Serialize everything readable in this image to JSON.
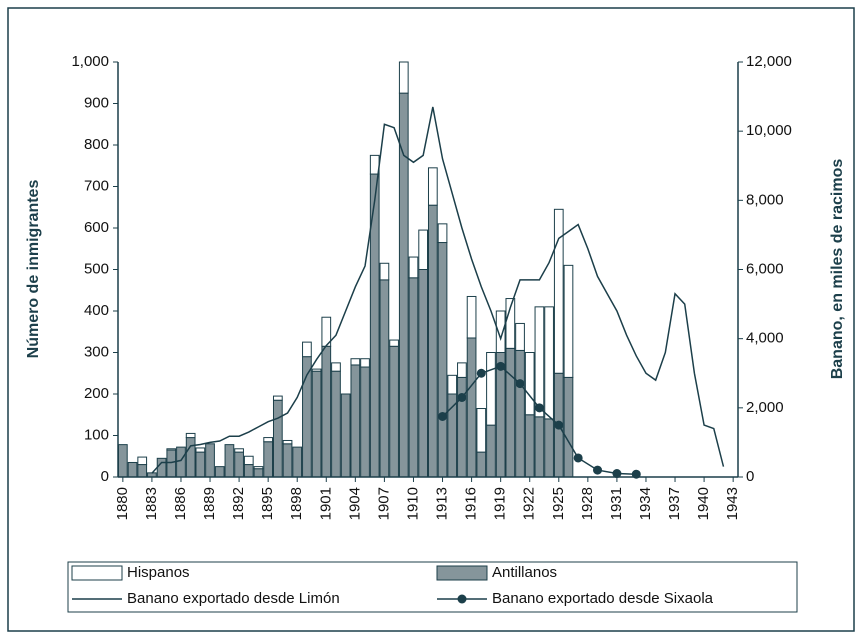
{
  "chart_data": {
    "type": "bar_line",
    "y_label": "Número de inmigrantes",
    "y2_label": "Banano, en miles de racimos",
    "xlim": [
      1879.5,
      1943.5
    ],
    "xticks": [
      1880,
      1883,
      1886,
      1889,
      1892,
      1895,
      1898,
      1901,
      1904,
      1907,
      1910,
      1913,
      1916,
      1919,
      1922,
      1925,
      1928,
      1931,
      1934,
      1937,
      1940,
      1943
    ],
    "ylim": [
      0,
      1000
    ],
    "yticks": [
      0,
      100,
      200,
      300,
      400,
      500,
      600,
      700,
      800,
      900,
      {
        "value": 1000,
        "label": "1,000"
      }
    ],
    "y2lim": [
      0,
      12000
    ],
    "y2ticks": [
      0,
      {
        "value": 2000,
        "label": "2,000"
      },
      {
        "value": 4000,
        "label": "4,000"
      },
      {
        "value": 6000,
        "label": "6,000"
      },
      {
        "value": 8000,
        "label": "8,000"
      },
      {
        "value": 10000,
        "label": "10,000"
      },
      {
        "value": 12000,
        "label": "12,000"
      }
    ],
    "series": [
      {
        "name": "Hispanos",
        "kind": "bar",
        "color": "#ffffff",
        "x": [
          1880,
          1881,
          1882,
          1883,
          1884,
          1885,
          1886,
          1887,
          1888,
          1889,
          1890,
          1891,
          1892,
          1893,
          1894,
          1895,
          1896,
          1897,
          1898,
          1899,
          1900,
          1901,
          1902,
          1903,
          1904,
          1905,
          1906,
          1907,
          1908,
          1909,
          1910,
          1911,
          1912,
          1913,
          1914,
          1915,
          1916,
          1917,
          1918,
          1919,
          1920,
          1921,
          1922,
          1923,
          1924,
          1925,
          1926
        ],
        "values": [
          0,
          0,
          18,
          0,
          0,
          3,
          0,
          10,
          10,
          0,
          0,
          0,
          8,
          20,
          5,
          10,
          10,
          8,
          0,
          35,
          5,
          70,
          20,
          0,
          15,
          20,
          45,
          40,
          15,
          75,
          50,
          95,
          90,
          45,
          45,
          35,
          100,
          105,
          175,
          100,
          120,
          65,
          150,
          265,
          270,
          395,
          270
        ]
      },
      {
        "name": "Antillanos",
        "kind": "bar",
        "color": "#85959b",
        "x": [
          1880,
          1881,
          1882,
          1883,
          1884,
          1885,
          1886,
          1887,
          1888,
          1889,
          1890,
          1891,
          1892,
          1893,
          1894,
          1895,
          1896,
          1897,
          1898,
          1899,
          1900,
          1901,
          1902,
          1903,
          1904,
          1905,
          1906,
          1907,
          1908,
          1909,
          1910,
          1911,
          1912,
          1913,
          1914,
          1915,
          1916,
          1917,
          1918,
          1919,
          1920,
          1921,
          1922,
          1923,
          1924,
          1925,
          1926
        ],
        "values": [
          78,
          35,
          30,
          10,
          45,
          65,
          72,
          95,
          60,
          80,
          25,
          78,
          60,
          30,
          20,
          85,
          185,
          80,
          72,
          290,
          255,
          315,
          255,
          200,
          270,
          265,
          730,
          475,
          315,
          925,
          480,
          500,
          655,
          565,
          200,
          240,
          335,
          60,
          125,
          300,
          310,
          305,
          150,
          145,
          140,
          250,
          240
        ]
      },
      {
        "name": "Banano exportado desde Limón",
        "kind": "line",
        "axis": "y2",
        "color": "#1c3f4a",
        "x": [
          1883,
          1884,
          1885,
          1886,
          1887,
          1888,
          1889,
          1890,
          1891,
          1892,
          1893,
          1894,
          1895,
          1896,
          1897,
          1898,
          1899,
          1900,
          1901,
          1902,
          1903,
          1904,
          1905,
          1906,
          1907,
          1908,
          1909,
          1910,
          1911,
          1912,
          1913,
          1914,
          1915,
          1916,
          1917,
          1918,
          1919,
          1920,
          1921,
          1922,
          1923,
          1924,
          1925,
          1926,
          1927,
          1928,
          1929,
          1930,
          1931,
          1932,
          1933,
          1934,
          1935,
          1936,
          1937,
          1938,
          1939,
          1940,
          1941,
          1942
        ],
        "values": [
          110,
          420,
          420,
          480,
          900,
          940,
          1000,
          1040,
          1180,
          1180,
          1300,
          1450,
          1600,
          1700,
          1850,
          2300,
          2950,
          3400,
          3800,
          4100,
          4800,
          5500,
          6100,
          8000,
          10200,
          10100,
          9300,
          9100,
          9300,
          10700,
          9200,
          8200,
          7200,
          6300,
          5500,
          4800,
          4000,
          4900,
          5700,
          5700,
          5700,
          6200,
          6900,
          7100,
          7300,
          6600,
          5800,
          5300,
          4800,
          4100,
          3500,
          3000,
          2800,
          3600,
          5300,
          5000,
          3000,
          1500,
          1400,
          300
        ]
      },
      {
        "name": "Banano exportado desde Sixaola",
        "kind": "line_marker",
        "axis": "y2",
        "color": "#1c3f4a",
        "x": [
          1913,
          1915,
          1917,
          1919,
          1921,
          1923,
          1925,
          1927,
          1929,
          1931,
          1933
        ],
        "values": [
          1750,
          2300,
          3000,
          3200,
          2700,
          2000,
          1500,
          550,
          200,
          100,
          80
        ]
      }
    ]
  }
}
